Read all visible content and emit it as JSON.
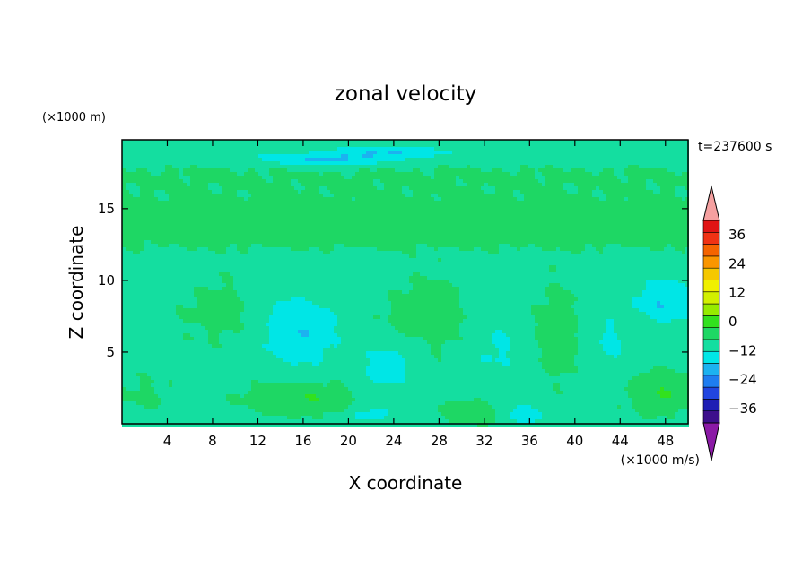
{
  "chart_data": {
    "type": "heatmap",
    "title": "zonal velocity",
    "xlabel": "X coordinate",
    "ylabel": "Z coordinate",
    "y_scale_note": "(×1000 m)",
    "x_scale_note": "(×1000 m/s)",
    "time_label": "t=237600 s",
    "xlim": [
      0,
      50
    ],
    "ylim": [
      0,
      19.8
    ],
    "x_ticks": [
      4,
      8,
      12,
      16,
      20,
      24,
      28,
      32,
      36,
      40,
      44,
      48
    ],
    "y_ticks": [
      5,
      10,
      15
    ],
    "grid": false,
    "legend": "colorbar-right",
    "colorbar": {
      "range": [
        -42,
        42
      ],
      "step": 6,
      "tick_values": [
        36,
        24,
        12,
        0,
        -12,
        -24,
        -36
      ],
      "tick_labels": [
        "36",
        "24",
        "12",
        "0",
        "−12",
        "−24",
        "−36"
      ],
      "colors": [
        "#8b1aa6",
        "#3d0f8c",
        "#1e1eb4",
        "#2145e0",
        "#1f7df0",
        "#1cb2f0",
        "#00e6e6",
        "#14dea0",
        "#1ed764",
        "#32e11e",
        "#96eb00",
        "#d2f000",
        "#f0f000",
        "#f5c800",
        "#fa9600",
        "#f56400",
        "#f03214",
        "#e11414",
        "#f5a0a0"
      ]
    },
    "field_features": [
      {
        "x": 20,
        "z": 17.5,
        "value": 3,
        "sx": 90,
        "sz": 2.2
      },
      {
        "x": 25,
        "z": 18.6,
        "value": -4,
        "sx": 80,
        "sz": 0.7
      },
      {
        "x": 18,
        "z": 18.4,
        "value": -10,
        "sx": 5,
        "sz": 0.5
      },
      {
        "x": 24,
        "z": 19.0,
        "value": -9,
        "sx": 4,
        "sz": 0.4
      },
      {
        "x": 25,
        "z": 14.5,
        "value": 4,
        "sx": 80,
        "sz": 1.2
      },
      {
        "x": 25,
        "z": 12.9,
        "value": 3,
        "sx": 80,
        "sz": 1.0
      },
      {
        "x": 9,
        "z": 7.8,
        "value": 4,
        "sx": 4,
        "sz": 2.3
      },
      {
        "x": 27,
        "z": 7.5,
        "value": 5,
        "sx": 4,
        "sz": 2.7
      },
      {
        "x": 38.5,
        "z": 6.5,
        "value": 5,
        "sx": 2.3,
        "sz": 3.5
      },
      {
        "x": 15.5,
        "z": 6.5,
        "value": -10,
        "sx": 3.5,
        "sz": 2.5
      },
      {
        "x": 48,
        "z": 8.5,
        "value": -10,
        "sx": 2.6,
        "sz": 1.6
      },
      {
        "x": 23.5,
        "z": 4.0,
        "value": -7,
        "sx": 2.5,
        "sz": 1.8
      },
      {
        "x": 33,
        "z": 5.5,
        "value": -5,
        "sx": 2.5,
        "sz": 2.5
      },
      {
        "x": 43,
        "z": 5.5,
        "value": -5,
        "sx": 2.0,
        "sz": 2.5
      },
      {
        "x": 16,
        "z": 1.8,
        "value": 8,
        "sx": 5,
        "sz": 1.1
      },
      {
        "x": 31,
        "z": 0.8,
        "value": 7,
        "sx": 3,
        "sz": 0.8
      },
      {
        "x": 47.5,
        "z": 2.2,
        "value": 8,
        "sx": 3,
        "sz": 1.4
      },
      {
        "x": 35.5,
        "z": 0.7,
        "value": -9,
        "sx": 2.0,
        "sz": 0.7
      },
      {
        "x": 22,
        "z": 0.7,
        "value": -7,
        "sx": 2.0,
        "sz": 0.6
      },
      {
        "x": 2,
        "z": 2.0,
        "value": 3,
        "sx": 2.5,
        "sz": 1.5
      }
    ],
    "base_value": -2
  }
}
